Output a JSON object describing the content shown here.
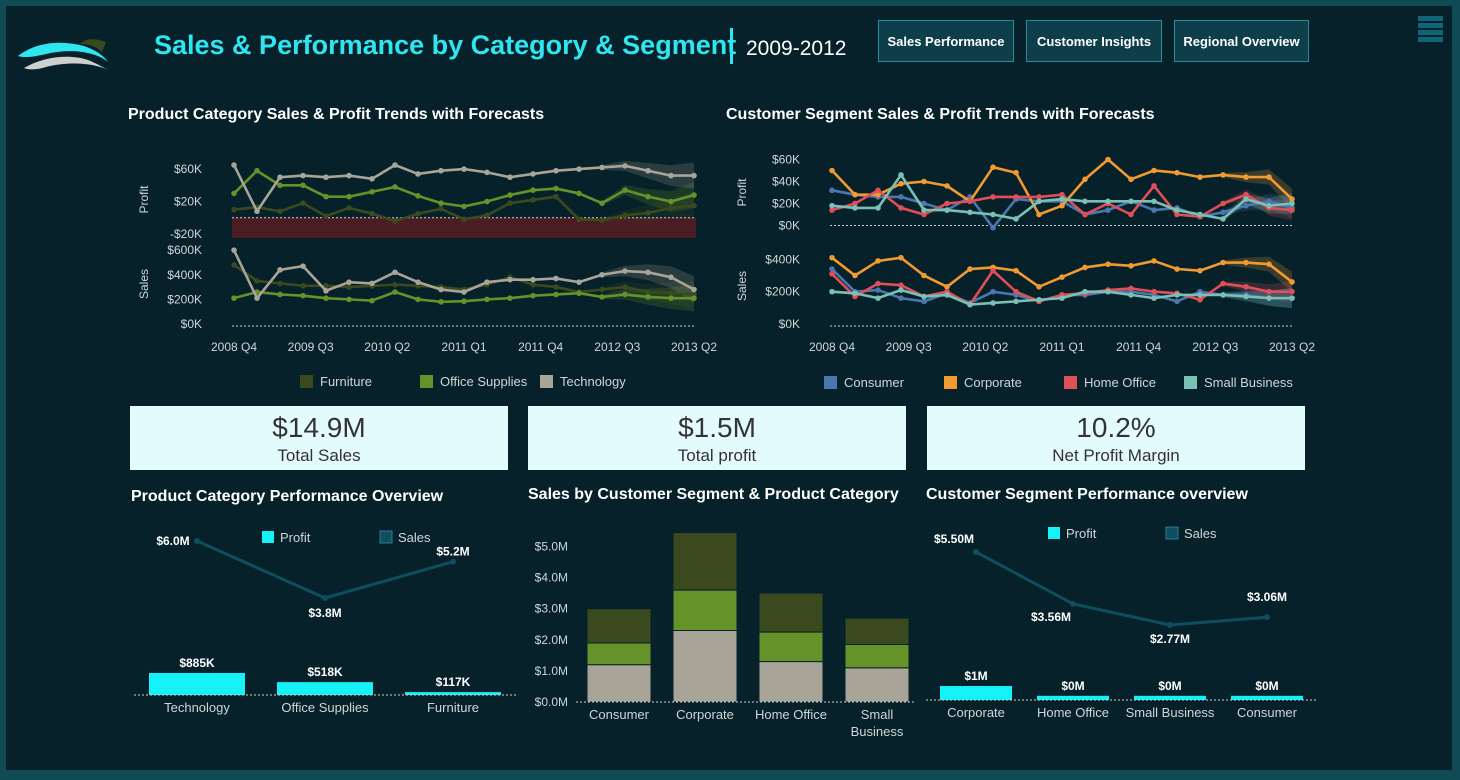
{
  "header": {
    "title": "Sales & Performance by Category & Segment",
    "years": "2009-2012",
    "nav": [
      "Sales Performance",
      "Customer Insights",
      "Regional Overview"
    ],
    "logo_icon": "wave-logo-icon",
    "menu_icon": "hamburger-menu-icon"
  },
  "colors": {
    "Furniture": "#3b4a1e",
    "Office Supplies": "#66922a",
    "Technology": "#a8a498",
    "Consumer": "#4a78ae",
    "Corporate": "#f29a32",
    "Home Office": "#e04f58",
    "Small Business": "#7bc0b4",
    "accent": "#2ee6f0",
    "profit_bar": "#14f1f7",
    "sales_line": "#0f4e5e"
  },
  "kpis": [
    {
      "value": "$14.9M",
      "label": "Total Sales"
    },
    {
      "value": "$1.5M",
      "label": "Total profit"
    },
    {
      "value": "10.2%",
      "label": "Net Profit Margin"
    }
  ],
  "chart_data": [
    {
      "type": "line",
      "title": "Product Category Sales & Profit Trends with Forecasts",
      "x_ticks": [
        "2008 Q4",
        "2009 Q3",
        "2010 Q2",
        "2011 Q1",
        "2011 Q4",
        "2012 Q3",
        "2013 Q2"
      ],
      "x_index_range": [
        0,
        21
      ],
      "forecast_start": 16,
      "profit": {
        "label": "Profit",
        "ticks": [
          "$60K",
          "$20K",
          "-$20K"
        ],
        "ylim": [
          -25000,
          70000
        ],
        "series": [
          {
            "name": "Furniture",
            "values": [
              10000,
              13000,
              8000,
              18000,
              2000,
              12000,
              5000,
              -4000,
              5000,
              11000,
              -2000,
              3000,
              18000,
              22000,
              26000,
              -2000,
              -3000,
              3000,
              6000,
              12000,
              15000
            ]
          },
          {
            "name": "Office Supplies",
            "values": [
              30000,
              58000,
              40000,
              40000,
              26000,
              26000,
              32000,
              38000,
              27000,
              18000,
              14000,
              20000,
              28000,
              34000,
              36000,
              30000,
              18000,
              34000,
              26000,
              20000,
              28000
            ]
          },
          {
            "name": "Technology",
            "values": [
              65000,
              8000,
              50000,
              52000,
              50000,
              52000,
              48000,
              65000,
              54000,
              58000,
              60000,
              56000,
              50000,
              54000,
              58000,
              60000,
              62000,
              64000,
              58000,
              52000,
              52000
            ]
          }
        ]
      },
      "sales": {
        "label": "Sales",
        "ticks": [
          "$600K",
          "$400K",
          "$200K",
          "$0K"
        ],
        "ylim": [
          0,
          650000
        ],
        "series": [
          {
            "name": "Furniture",
            "values": [
              480000,
              350000,
              330000,
              310000,
              310000,
              300000,
              310000,
              320000,
              310000,
              300000,
              280000,
              320000,
              380000,
              320000,
              300000,
              260000,
              280000,
              300000,
              260000,
              250000,
              240000
            ]
          },
          {
            "name": "Office Supplies",
            "values": [
              210000,
              260000,
              240000,
              230000,
              210000,
              200000,
              190000,
              260000,
              200000,
              180000,
              185000,
              200000,
              210000,
              230000,
              240000,
              250000,
              220000,
              240000,
              220000,
              210000,
              210000
            ]
          },
          {
            "name": "Technology",
            "values": [
              600000,
              210000,
              440000,
              470000,
              270000,
              340000,
              330000,
              420000,
              340000,
              280000,
              260000,
              340000,
              360000,
              360000,
              370000,
              340000,
              400000,
              430000,
              420000,
              380000,
              280000
            ]
          }
        ]
      },
      "legend": [
        "Furniture",
        "Office Supplies",
        "Technology"
      ]
    },
    {
      "type": "line",
      "title": "Customer Segment Sales & Profit Trends with Forecasts",
      "x_ticks": [
        "2008 Q4",
        "2009 Q3",
        "2010 Q2",
        "2011 Q1",
        "2011 Q4",
        "2012 Q3",
        "2013 Q2"
      ],
      "x_index_range": [
        0,
        21
      ],
      "forecast_start": 17,
      "profit": {
        "label": "Profit",
        "ticks": [
          "$60K",
          "$40K",
          "$20K",
          "$0K"
        ],
        "ylim": [
          -5000,
          65000
        ],
        "series": [
          {
            "name": "Consumer",
            "values": [
              32000,
              28000,
              26000,
              26000,
              20000,
              14000,
              26000,
              -2000,
              24000,
              22000,
              22000,
              10000,
              14000,
              22000,
              14000,
              16000,
              8000,
              12000,
              18000,
              22000,
              16000
            ]
          },
          {
            "name": "Corporate",
            "values": [
              50000,
              28000,
              28000,
              38000,
              40000,
              36000,
              22000,
              53000,
              48000,
              10000,
              18000,
              42000,
              60000,
              42000,
              50000,
              48000,
              44000,
              46000,
              44000,
              44000,
              24000
            ]
          },
          {
            "name": "Home Office",
            "values": [
              14000,
              20000,
              32000,
              16000,
              10000,
              20000,
              22000,
              26000,
              26000,
              26000,
              28000,
              10000,
              20000,
              10000,
              36000,
              10000,
              8000,
              20000,
              28000,
              16000,
              14000
            ]
          },
          {
            "name": "Small Business",
            "values": [
              18000,
              16000,
              16000,
              46000,
              14000,
              14000,
              12000,
              10000,
              6000,
              22000,
              24000,
              22000,
              22000,
              22000,
              22000,
              14000,
              10000,
              6000,
              24000,
              18000,
              20000
            ]
          }
        ]
      },
      "sales": {
        "label": "Sales",
        "ticks": [
          "$400K",
          "$200K",
          "$0K"
        ],
        "ylim": [
          0,
          470000
        ],
        "series": [
          {
            "name": "Consumer",
            "values": [
              340000,
              200000,
              210000,
              160000,
              140000,
              190000,
              130000,
              200000,
              180000,
              140000,
              180000,
              180000,
              200000,
              200000,
              180000,
              140000,
              200000,
              180000,
              180000,
              160000,
              160000
            ]
          },
          {
            "name": "Corporate",
            "values": [
              410000,
              300000,
              390000,
              410000,
              300000,
              230000,
              340000,
              350000,
              330000,
              230000,
              290000,
              350000,
              370000,
              360000,
              390000,
              340000,
              330000,
              380000,
              380000,
              370000,
              260000
            ]
          },
          {
            "name": "Home Office",
            "values": [
              310000,
              170000,
              250000,
              240000,
              170000,
              200000,
              120000,
              330000,
              200000,
              140000,
              180000,
              190000,
              210000,
              220000,
              200000,
              190000,
              150000,
              250000,
              230000,
              200000,
              200000
            ]
          },
          {
            "name": "Small Business",
            "values": [
              200000,
              190000,
              160000,
              210000,
              170000,
              180000,
              120000,
              130000,
              140000,
              150000,
              160000,
              200000,
              200000,
              180000,
              160000,
              180000,
              180000,
              180000,
              170000,
              160000,
              160000
            ]
          }
        ]
      },
      "legend": [
        "Consumer",
        "Corporate",
        "Home Office",
        "Small Business"
      ]
    },
    {
      "type": "bar",
      "title": "Product Category Performance Overview",
      "categories": [
        "Technology",
        "Office Supplies",
        "Furniture"
      ],
      "legend": [
        "Profit",
        "Sales"
      ],
      "series": [
        {
          "name": "Profit",
          "values": [
            885000,
            518000,
            117000
          ],
          "labels": [
            "$885K",
            "$518K",
            "$117K"
          ]
        },
        {
          "name": "Sales",
          "values": [
            6000000,
            3800000,
            5200000
          ],
          "labels": [
            "$6.0M",
            "$3.8M",
            "$5.2M"
          ]
        }
      ]
    },
    {
      "type": "bar",
      "title": "Sales by Customer Segment & Product Category",
      "categories": [
        "Consumer",
        "Corporate",
        "Home Office",
        "Small Business"
      ],
      "ticks": [
        "$5.0M",
        "$4.0M",
        "$3.0M",
        "$2.0M",
        "$1.0M",
        "$0.0M"
      ],
      "ylim": [
        0,
        5500000
      ],
      "stacked": true,
      "series": [
        {
          "name": "Technology",
          "values": [
            1200000,
            2300000,
            1300000,
            1100000
          ]
        },
        {
          "name": "Office Supplies",
          "values": [
            700000,
            1300000,
            950000,
            750000
          ]
        },
        {
          "name": "Furniture",
          "values": [
            1100000,
            1850000,
            1250000,
            850000
          ]
        }
      ]
    },
    {
      "type": "bar",
      "title": "Customer Segment Performance overview",
      "categories": [
        "Corporate",
        "Home Office",
        "Small Business",
        "Consumer"
      ],
      "legend": [
        "Profit",
        "Sales"
      ],
      "series": [
        {
          "name": "Profit",
          "values": [
            1000000,
            300000,
            300000,
            300000
          ],
          "labels": [
            "$1M",
            "$0M",
            "$0M",
            "$0M"
          ]
        },
        {
          "name": "Sales",
          "values": [
            5500000,
            3560000,
            2770000,
            3060000
          ],
          "labels": [
            "$5.50M",
            "$3.56M",
            "$2.77M",
            "$3.06M"
          ]
        }
      ]
    }
  ]
}
